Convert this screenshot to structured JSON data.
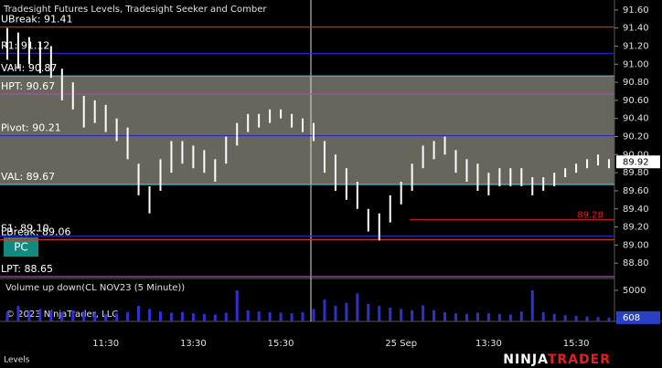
{
  "title": "Tradesight Futures Levels, Tradesight Seeker and Comber",
  "button": "PC",
  "copyright": "© 2023 NinjaTrader, LLC",
  "panel_label": "Levels",
  "logo": {
    "left": "NINJA",
    "right": "TRADER"
  },
  "chart_data": [
    {
      "type": "ohlc",
      "categories": [
        null,
        null,
        null,
        null,
        null,
        null,
        null,
        null,
        null,
        "11:30",
        null,
        null,
        null,
        null,
        null,
        null,
        null,
        "13:30",
        null,
        null,
        null,
        null,
        null,
        null,
        null,
        "15:30",
        null,
        null,
        null,
        null,
        null,
        null,
        null,
        null,
        null,
        null,
        "25 Sep",
        null,
        null,
        null,
        null,
        null,
        null,
        null,
        "13:30",
        null,
        null,
        null,
        null,
        null,
        null,
        null,
        "15:30",
        null,
        null,
        null
      ],
      "high": [
        91.4,
        91.35,
        91.3,
        91.25,
        91.2,
        90.95,
        90.8,
        90.65,
        90.6,
        90.55,
        90.4,
        90.3,
        89.9,
        89.65,
        89.95,
        90.15,
        90.15,
        90.1,
        90.05,
        89.95,
        90.2,
        90.35,
        90.45,
        90.45,
        90.5,
        90.5,
        90.45,
        90.4,
        90.35,
        90.15,
        90.0,
        89.85,
        89.7,
        89.4,
        89.35,
        89.55,
        89.7,
        89.9,
        90.1,
        90.15,
        90.2,
        90.05,
        89.95,
        89.9,
        89.8,
        89.85,
        89.85,
        89.85,
        89.75,
        89.75,
        89.8,
        89.85,
        89.9,
        89.95,
        90.0,
        89.95
      ],
      "low": [
        91.05,
        90.95,
        91.0,
        90.9,
        90.85,
        90.6,
        90.5,
        90.3,
        90.35,
        90.25,
        90.15,
        89.95,
        89.55,
        89.35,
        89.6,
        89.8,
        89.9,
        89.85,
        89.8,
        89.7,
        89.9,
        90.1,
        90.25,
        90.3,
        90.35,
        90.4,
        90.3,
        90.25,
        90.15,
        89.8,
        89.6,
        89.5,
        89.4,
        89.15,
        89.05,
        89.25,
        89.45,
        89.6,
        89.85,
        89.95,
        90.0,
        89.8,
        89.7,
        89.6,
        89.55,
        89.65,
        89.65,
        89.65,
        89.55,
        89.6,
        89.65,
        89.75,
        89.8,
        89.85,
        89.88,
        89.85
      ],
      "color": "#ffffff",
      "ylim": [
        88.63,
        91.71
      ],
      "yticks": [
        {
          "value": 88.8,
          "label": "88.80"
        },
        {
          "value": 89.0,
          "label": "89.00"
        },
        {
          "value": 89.2,
          "label": "89.20"
        },
        {
          "value": 89.4,
          "label": "89.40"
        },
        {
          "value": 89.6,
          "label": "89.60"
        },
        {
          "value": 89.8,
          "label": "89.80"
        },
        {
          "value": 90.0,
          "label": "90.00"
        },
        {
          "value": 90.2,
          "label": "90.20"
        },
        {
          "value": 90.4,
          "label": "90.40"
        },
        {
          "value": 90.6,
          "label": "90.60"
        },
        {
          "value": 90.8,
          "label": "90.80"
        },
        {
          "value": 91.0,
          "label": "91.00"
        },
        {
          "value": 91.2,
          "label": "91.20"
        },
        {
          "value": 91.4,
          "label": "91.40"
        },
        {
          "value": 91.6,
          "label": "91.60"
        }
      ],
      "levels": [
        {
          "label": "UBreak: 91.41",
          "value": 91.41,
          "color": "#d03030"
        },
        {
          "label": "R1: 91.12",
          "value": 91.12,
          "color": "#2828c8"
        },
        {
          "label": "VAH: 90.87",
          "value": 90.87,
          "color": "#40c8c8"
        },
        {
          "label": "HPT: 90.67",
          "value": 90.67,
          "color": "#c040c0"
        },
        {
          "label": "Pivot: 90.21",
          "value": 90.21,
          "color": "#2828c8"
        },
        {
          "label": "VAL: 89.67",
          "value": 89.67,
          "color": "#40c8c8"
        },
        {
          "label": "S1: 89.10",
          "value": 89.1,
          "color": "#2828c8"
        },
        {
          "label": "LBreak: 89.06",
          "value": 89.06,
          "color": "#d03030"
        },
        {
          "label": "LPT: 88.65",
          "value": 88.65,
          "color": "#c040c0"
        }
      ],
      "value_area_color": "#66665c",
      "marker": 89.28,
      "marker_color": "#e02020",
      "last_price": 89.92
    },
    {
      "type": "bar",
      "title": "Volume up down(CL NOV23 (5 Minute))",
      "values": [
        1500,
        2500,
        1800,
        2000,
        1700,
        1500,
        1800,
        1600,
        1400,
        1200,
        1300,
        1500,
        2500,
        2000,
        1600,
        1400,
        1500,
        1300,
        1200,
        1100,
        1400,
        5000,
        1800,
        1600,
        1500,
        1400,
        1300,
        1500,
        2000,
        3500,
        2500,
        3000,
        4500,
        2800,
        2500,
        2200,
        2000,
        1800,
        2600,
        1800,
        1500,
        1300,
        1200,
        1400,
        1300,
        1200,
        1100,
        1600,
        5000,
        1500,
        1200,
        1000,
        900,
        800,
        700,
        600
      ],
      "color": "#3030d0",
      "ylim": [
        0,
        6900
      ],
      "yticks": [
        5000
      ],
      "last": 608
    }
  ]
}
